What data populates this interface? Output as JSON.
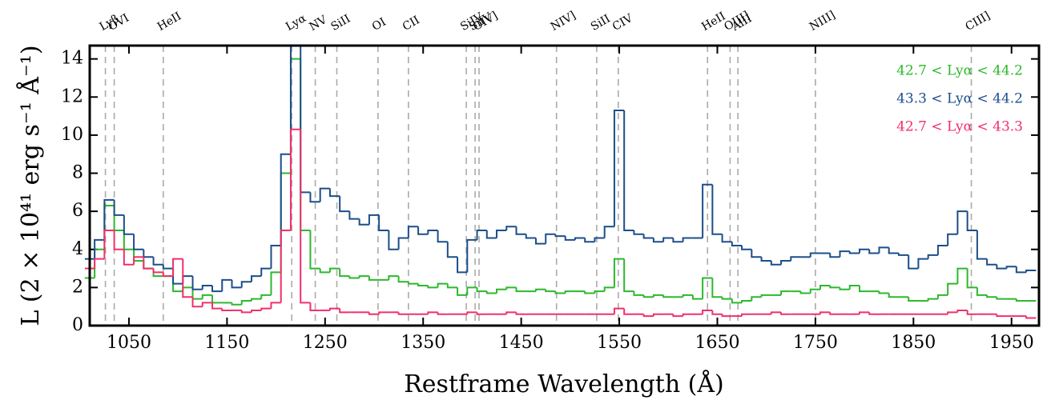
{
  "chart_data": {
    "type": "step",
    "x_label": "Restframe Wavelength (Å)",
    "y_label": "L (2 × 10⁴¹ erg s⁻¹ Å⁻¹)",
    "xlim": [
      1010,
      1978
    ],
    "ylim": [
      0,
      14.7
    ],
    "xticks": [
      1050,
      1150,
      1250,
      1350,
      1450,
      1550,
      1650,
      1750,
      1850,
      1950
    ],
    "yticks": [
      0,
      2,
      4,
      6,
      8,
      10,
      12,
      14
    ],
    "legend": "upper right",
    "x": [
      1010,
      1020,
      1030,
      1040,
      1050,
      1060,
      1070,
      1080,
      1090,
      1100,
      1110,
      1120,
      1130,
      1140,
      1150,
      1160,
      1170,
      1180,
      1190,
      1200,
      1210,
      1220,
      1230,
      1240,
      1250,
      1260,
      1270,
      1280,
      1290,
      1300,
      1310,
      1320,
      1330,
      1340,
      1350,
      1360,
      1370,
      1380,
      1390,
      1400,
      1410,
      1420,
      1430,
      1440,
      1450,
      1460,
      1470,
      1480,
      1490,
      1500,
      1510,
      1520,
      1530,
      1540,
      1550,
      1560,
      1570,
      1580,
      1590,
      1600,
      1610,
      1620,
      1630,
      1640,
      1650,
      1660,
      1670,
      1680,
      1690,
      1700,
      1710,
      1720,
      1730,
      1740,
      1750,
      1760,
      1770,
      1780,
      1790,
      1800,
      1810,
      1820,
      1830,
      1840,
      1850,
      1860,
      1870,
      1880,
      1890,
      1900,
      1910,
      1920,
      1930,
      1940,
      1950,
      1960,
      1970
    ],
    "series": [
      {
        "name": "42.7 < Lyα < 44.2",
        "color": "#2db82d",
        "values": [
          2.5,
          4.0,
          6.3,
          5.0,
          4.0,
          3.4,
          3.0,
          2.6,
          2.6,
          1.8,
          2.0,
          1.4,
          1.6,
          1.2,
          1.2,
          1.1,
          1.3,
          1.4,
          1.6,
          2.8,
          8.0,
          14.0,
          5.0,
          3.0,
          2.8,
          3.0,
          2.6,
          2.5,
          2.6,
          2.4,
          2.4,
          2.6,
          2.3,
          2.2,
          2.1,
          2.0,
          2.2,
          2.0,
          1.6,
          2.0,
          1.8,
          1.7,
          1.9,
          2.0,
          1.8,
          1.8,
          1.9,
          1.8,
          1.7,
          1.8,
          1.8,
          1.7,
          1.8,
          2.0,
          3.5,
          1.8,
          1.6,
          1.5,
          1.6,
          1.5,
          1.5,
          1.6,
          1.4,
          2.5,
          1.5,
          1.4,
          1.2,
          1.3,
          1.5,
          1.6,
          1.6,
          1.8,
          1.8,
          1.7,
          1.9,
          2.1,
          2.0,
          1.9,
          2.1,
          1.8,
          1.8,
          1.7,
          1.5,
          1.5,
          1.3,
          1.3,
          1.4,
          1.6,
          2.2,
          3.0,
          2.0,
          1.6,
          1.5,
          1.4,
          1.4,
          1.3,
          1.3
        ]
      },
      {
        "name": "43.3 < Lyα < 44.2",
        "color": "#1c4e8a",
        "values": [
          3.5,
          4.5,
          6.6,
          5.8,
          4.8,
          4.0,
          3.6,
          3.2,
          3.0,
          2.2,
          2.6,
          1.9,
          2.1,
          1.8,
          2.4,
          2.0,
          2.3,
          2.6,
          3.0,
          4.2,
          9.0,
          14.7,
          7.0,
          6.5,
          7.2,
          6.8,
          6.0,
          5.6,
          5.3,
          5.8,
          5.0,
          4.0,
          4.6,
          5.2,
          4.8,
          5.0,
          4.4,
          3.6,
          2.8,
          4.5,
          5.0,
          4.6,
          5.0,
          5.2,
          4.8,
          4.6,
          4.3,
          4.8,
          4.7,
          4.5,
          4.6,
          4.4,
          4.6,
          5.2,
          11.3,
          5.0,
          4.8,
          4.6,
          4.4,
          4.6,
          4.4,
          4.6,
          4.6,
          7.4,
          4.8,
          4.4,
          4.2,
          4.0,
          3.6,
          3.4,
          3.2,
          3.4,
          3.6,
          3.6,
          3.8,
          3.8,
          3.6,
          3.9,
          3.8,
          4.0,
          3.8,
          4.1,
          3.8,
          3.7,
          3.0,
          3.5,
          3.7,
          4.2,
          4.8,
          6.0,
          5.0,
          3.5,
          3.2,
          3.0,
          3.1,
          2.8,
          2.9
        ]
      },
      {
        "name": "42.7 < Lyα < 43.3",
        "color": "#f0306a",
        "values": [
          3.0,
          3.5,
          5.0,
          4.0,
          3.2,
          3.6,
          3.0,
          2.8,
          2.6,
          3.5,
          1.5,
          1.0,
          1.2,
          0.9,
          0.8,
          0.8,
          0.7,
          0.8,
          0.9,
          1.2,
          5.0,
          10.3,
          1.2,
          0.8,
          0.8,
          0.9,
          0.7,
          0.7,
          0.7,
          0.6,
          0.7,
          0.7,
          0.6,
          0.6,
          0.6,
          0.7,
          0.6,
          0.6,
          0.6,
          0.7,
          0.6,
          0.6,
          0.6,
          0.7,
          0.6,
          0.6,
          0.6,
          0.6,
          0.6,
          0.6,
          0.6,
          0.6,
          0.6,
          0.6,
          0.9,
          0.6,
          0.6,
          0.5,
          0.6,
          0.6,
          0.5,
          0.6,
          0.6,
          0.8,
          0.6,
          0.5,
          0.5,
          0.6,
          0.6,
          0.6,
          0.7,
          0.6,
          0.6,
          0.6,
          0.6,
          0.7,
          0.6,
          0.6,
          0.6,
          0.7,
          0.6,
          0.6,
          0.6,
          0.6,
          0.6,
          0.6,
          0.6,
          0.6,
          0.7,
          0.8,
          0.6,
          0.6,
          0.6,
          0.5,
          0.5,
          0.5,
          0.4
        ]
      }
    ],
    "lines": [
      {
        "label": "Lyβ",
        "x": 1026
      },
      {
        "label": "OVI",
        "x": 1035
      },
      {
        "label": "HeII",
        "x": 1085
      },
      {
        "label": "Lyα",
        "x": 1216
      },
      {
        "label": "NV",
        "x": 1240
      },
      {
        "label": "SiII",
        "x": 1262
      },
      {
        "label": "OI",
        "x": 1304
      },
      {
        "label": "CII",
        "x": 1335
      },
      {
        "label": "SiIV",
        "x": 1394
      },
      {
        "label": "SiIV",
        "x": 1403
      },
      {
        "label": "OIV]",
        "x": 1407
      },
      {
        "label": "NIV]",
        "x": 1486
      },
      {
        "label": "SiII",
        "x": 1527
      },
      {
        "label": "CIV",
        "x": 1549
      },
      {
        "label": "HeII",
        "x": 1640
      },
      {
        "label": "OIII]",
        "x": 1663
      },
      {
        "label": "AlII",
        "x": 1671
      },
      {
        "label": "NIII]",
        "x": 1750
      },
      {
        "label": "CIII]",
        "x": 1909
      }
    ]
  }
}
